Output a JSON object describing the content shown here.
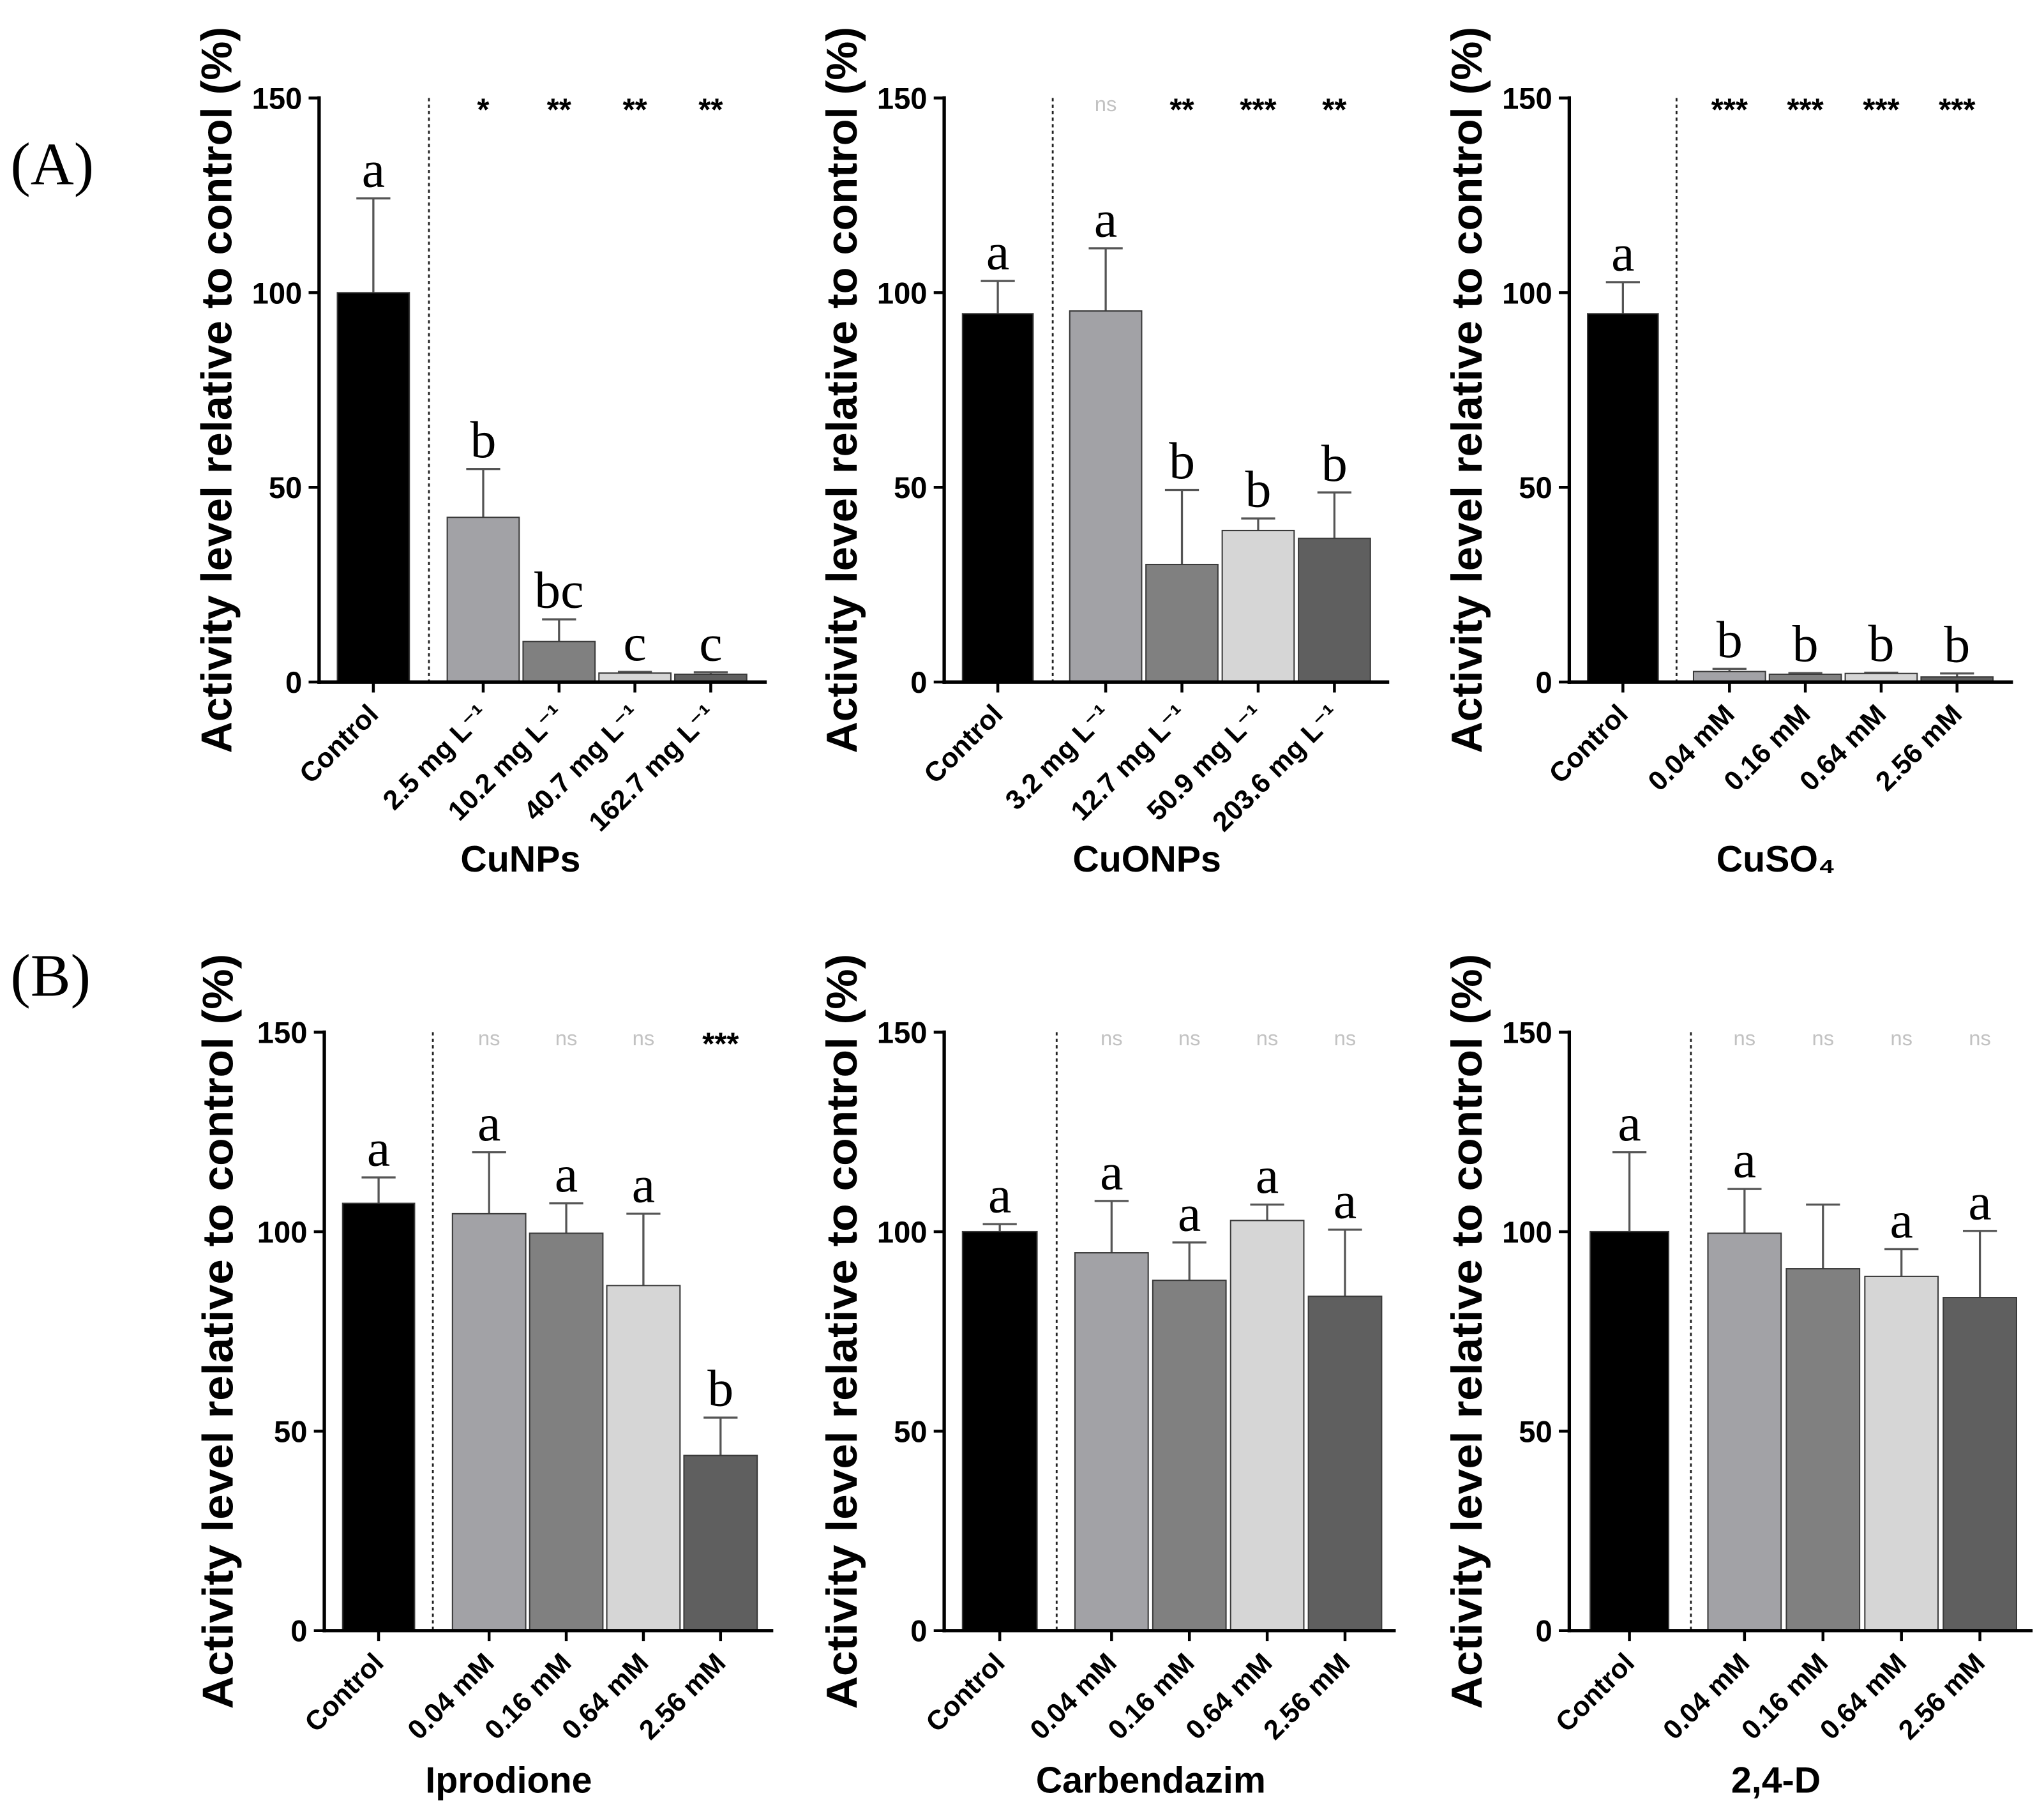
{
  "panels": {
    "A": "(A)",
    "B": "(B)"
  },
  "chart_data": [
    {
      "type": "bar",
      "title": "",
      "xlabel": "CuNPs",
      "ylabel": "Activity level relative to control (%)",
      "ylim": [
        0,
        150
      ],
      "yticks": [
        0,
        50,
        100,
        150
      ],
      "categories": [
        "Control",
        "2.5 mg L⁻¹",
        "10.2 mg L⁻¹",
        "40.7 mg L⁻¹",
        "162.7 mg L⁻¹"
      ],
      "values": [
        100.0,
        42.3,
        10.4,
        2.3,
        2.0
      ],
      "errors": [
        24.2,
        12.4,
        5.7,
        0.3,
        0.5
      ],
      "letters": [
        "a",
        "b",
        "bc",
        "c",
        "c"
      ],
      "significance": [
        "",
        "*",
        "**",
        "**",
        "**"
      ],
      "colors": [
        "#000000",
        "#a2a2a6",
        "#808080",
        "#d6d6d6",
        "#5f5f5f"
      ]
    },
    {
      "type": "bar",
      "title": "",
      "xlabel": "CuONPs",
      "ylabel": "Activity level relative to control (%)",
      "ylim": [
        0,
        150
      ],
      "yticks": [
        0,
        50,
        100,
        150
      ],
      "categories": [
        "Control",
        "3.2 mg L⁻¹",
        "12.7 mg L⁻¹",
        "50.9 mg L⁻¹",
        "203.6 mg L⁻¹"
      ],
      "values": [
        94.6,
        95.3,
        30.2,
        38.9,
        36.9
      ],
      "errors": [
        8.4,
        16.1,
        19.1,
        3.1,
        11.8
      ],
      "letters": [
        "a",
        "a",
        "b",
        "b",
        "b"
      ],
      "significance": [
        "",
        "ns",
        "**",
        "***",
        "**"
      ],
      "colors": [
        "#000000",
        "#a2a2a6",
        "#808080",
        "#d6d6d6",
        "#5f5f5f"
      ]
    },
    {
      "type": "bar",
      "title": "",
      "xlabel": "CuSO₄",
      "ylabel": "Activity level relative to control (%)",
      "ylim": [
        0,
        150
      ],
      "yticks": [
        0,
        50,
        100,
        150
      ],
      "categories": [
        "Control",
        "0.04 mM",
        "0.16 mM",
        "0.64 mM",
        "2.56 mM"
      ],
      "values": [
        94.6,
        2.7,
        2.0,
        2.2,
        1.3
      ],
      "errors": [
        8.1,
        0.7,
        0.3,
        0.2,
        0.9
      ],
      "letters": [
        "a",
        "b",
        "b",
        "b",
        "b"
      ],
      "significance": [
        "",
        "***",
        "***",
        "***",
        "***"
      ],
      "colors": [
        "#000000",
        "#a2a2a6",
        "#808080",
        "#d6d6d6",
        "#5f5f5f"
      ]
    },
    {
      "type": "bar",
      "title": "",
      "xlabel": "Iprodione",
      "ylabel": "Activity level relative to control (%)",
      "ylim": [
        0,
        150
      ],
      "yticks": [
        0,
        50,
        100,
        150
      ],
      "categories": [
        "Control",
        "0.04 mM",
        "0.16 mM",
        "0.64 mM",
        "2.56 mM"
      ],
      "values": [
        107.1,
        104.5,
        99.6,
        86.5,
        43.9
      ],
      "errors": [
        6.5,
        15.4,
        7.5,
        18.0,
        9.5
      ],
      "letters": [
        "a",
        "a",
        "a",
        "a",
        "b"
      ],
      "significance": [
        "",
        "ns",
        "ns",
        "ns",
        "***"
      ],
      "colors": [
        "#000000",
        "#a2a2a6",
        "#808080",
        "#d6d6d6",
        "#5f5f5f"
      ]
    },
    {
      "type": "bar",
      "title": "",
      "xlabel": "Carbendazim",
      "ylabel": "Activity level relative to control (%)",
      "ylim": [
        0,
        150
      ],
      "yticks": [
        0,
        50,
        100,
        150
      ],
      "categories": [
        "Control",
        "0.04 mM",
        "0.16 mM",
        "0.64 mM",
        "2.56 mM"
      ],
      "values": [
        100.0,
        94.7,
        87.8,
        102.8,
        83.8
      ],
      "errors": [
        1.9,
        13.0,
        9.5,
        4.0,
        16.7
      ],
      "letters": [
        "a",
        "a",
        "a",
        "a",
        "a"
      ],
      "significance": [
        "",
        "ns",
        "ns",
        "ns",
        "ns"
      ],
      "colors": [
        "#000000",
        "#a2a2a6",
        "#808080",
        "#d6d6d6",
        "#5f5f5f"
      ]
    },
    {
      "type": "bar",
      "title": "",
      "xlabel": "2,4-D",
      "ylabel": "Activity level relative to control (%)",
      "ylim": [
        0,
        150
      ],
      "yticks": [
        0,
        50,
        100,
        150
      ],
      "categories": [
        "Control",
        "0.04 mM",
        "0.16 mM",
        "0.64 mM",
        "2.56 mM"
      ],
      "values": [
        100.0,
        99.6,
        90.7,
        88.8,
        83.5
      ],
      "errors": [
        19.9,
        11.1,
        16.1,
        6.8,
        16.7
      ],
      "letters": [
        "a",
        "a",
        "",
        "a",
        "a"
      ],
      "significance": [
        "",
        "ns",
        "ns",
        "ns",
        "ns"
      ],
      "colors": [
        "#000000",
        "#a2a2a6",
        "#808080",
        "#d6d6d6",
        "#5f5f5f"
      ]
    }
  ]
}
